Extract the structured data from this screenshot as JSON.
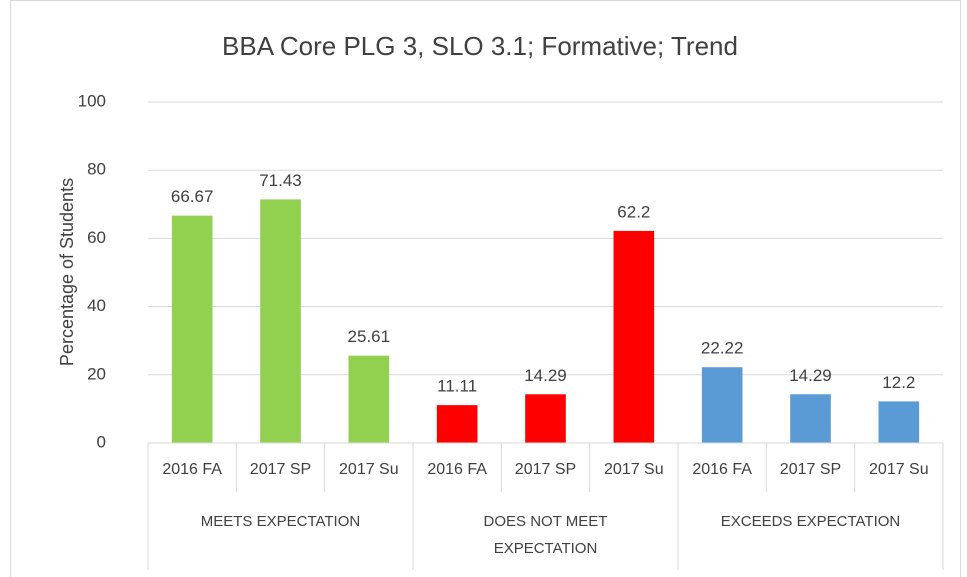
{
  "chart_data": {
    "type": "bar",
    "title": "BBA Core PLG 3, SLO 3.1; Formative; Trend",
    "y_label": "Percentage of Students",
    "groups": [
      {
        "name": "MEETS EXPECTATION",
        "color": "#92d050",
        "categories": [
          "2016 FA",
          "2017 SP",
          "2017 Su"
        ],
        "values": [
          66.67,
          71.43,
          25.61
        ]
      },
      {
        "name": "DOES NOT MEET EXPECTATION",
        "color": "#ff0000",
        "categories": [
          "2016 FA",
          "2017 SP",
          "2017 Su"
        ],
        "values": [
          11.11,
          14.29,
          62.2
        ]
      },
      {
        "name": "EXCEEDS EXPECTATION",
        "color": "#5b9bd5",
        "categories": [
          "2016 FA",
          "2017 SP",
          "2017 Su"
        ],
        "values": [
          22.22,
          14.29,
          12.2
        ]
      }
    ],
    "ylim": [
      0,
      100
    ],
    "yticks": [
      0,
      20,
      40,
      60,
      80,
      100
    ],
    "grid": true
  }
}
